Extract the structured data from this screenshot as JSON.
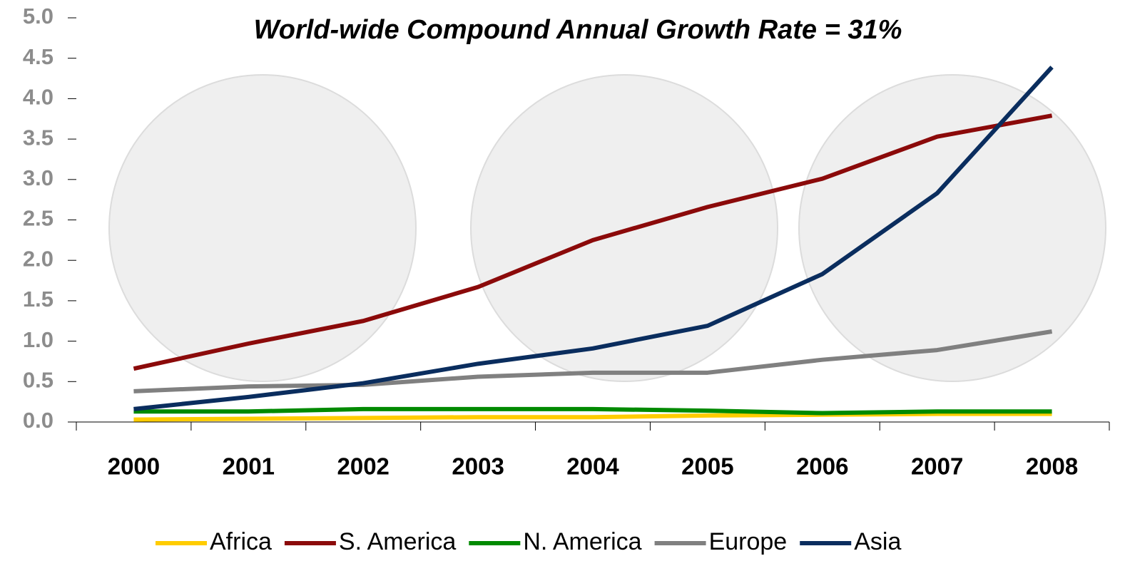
{
  "chart_data": {
    "type": "line",
    "title": "World-wide Compound Annual Growth Rate = 31%",
    "categories": [
      "2000",
      "2001",
      "2002",
      "2003",
      "2004",
      "2005",
      "2006",
      "2007",
      "2008"
    ],
    "series": [
      {
        "name": "Africa",
        "color": "#ffcc00",
        "values": [
          0.03,
          0.04,
          0.05,
          0.06,
          0.06,
          0.08,
          0.09,
          0.1,
          0.1
        ]
      },
      {
        "name": "S. America",
        "color": "#8b0a0a",
        "values": [
          0.66,
          0.97,
          1.25,
          1.67,
          2.25,
          2.66,
          3.01,
          3.53,
          3.79
        ]
      },
      {
        "name": "N. America",
        "color": "#008a00",
        "values": [
          0.13,
          0.13,
          0.16,
          0.16,
          0.16,
          0.14,
          0.11,
          0.13,
          0.13
        ]
      },
      {
        "name": "Europe",
        "color": "#808080",
        "values": [
          0.38,
          0.44,
          0.46,
          0.56,
          0.61,
          0.61,
          0.77,
          0.89,
          1.12
        ]
      },
      {
        "name": "Asia",
        "color": "#0a2d5e",
        "values": [
          0.16,
          0.31,
          0.48,
          0.72,
          0.91,
          1.19,
          1.83,
          2.83,
          4.39
        ]
      }
    ],
    "ylim": [
      0,
      5
    ],
    "yticks": [
      {
        "value": 0,
        "label": "0.0"
      },
      0.5,
      {
        "value": 1,
        "label": "1.0"
      },
      1.5,
      {
        "value": 2,
        "label": "2.0"
      },
      2.5,
      {
        "value": 3,
        "label": "3.0"
      },
      3.5,
      {
        "value": 4,
        "label": "4.0"
      },
      4.5,
      {
        "value": 5,
        "label": "5.0"
      }
    ],
    "grid": false,
    "legend": "bottom"
  }
}
